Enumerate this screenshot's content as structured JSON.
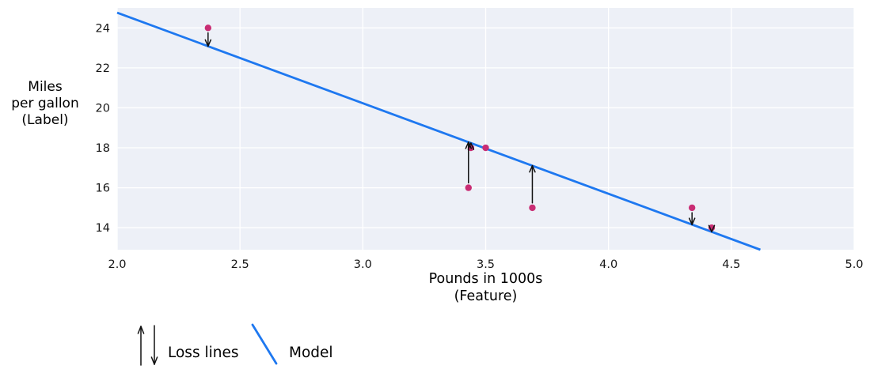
{
  "chart_data": {
    "type": "scatter",
    "title": "",
    "xlabel": [
      "Pounds in 1000s",
      "(Feature)"
    ],
    "ylabel": [
      "Miles",
      "per gallon",
      "(Label)"
    ],
    "xlim": [
      2.0,
      5.0
    ],
    "ylim": [
      12.9,
      25.0
    ],
    "grid": true,
    "legend_position": "bottom",
    "x_ticks": [
      {
        "value": 2.0,
        "label": "2.0"
      },
      {
        "value": 2.5,
        "label": "2.5"
      },
      {
        "value": 3.0,
        "label": "3.0"
      },
      {
        "value": 3.5,
        "label": "3.5"
      },
      {
        "value": 4.0,
        "label": "4.0"
      },
      {
        "value": 4.5,
        "label": "4.5"
      },
      {
        "value": 5.0,
        "label": "5.0"
      }
    ],
    "y_ticks": [
      {
        "value": 14,
        "label": "14"
      },
      {
        "value": 16,
        "label": "16"
      },
      {
        "value": 18,
        "label": "18"
      },
      {
        "value": 20,
        "label": "20"
      },
      {
        "value": 22,
        "label": "22"
      },
      {
        "value": 24,
        "label": "24"
      }
    ],
    "points": [
      {
        "x": 2.37,
        "y": 24,
        "loss_arrow": "down"
      },
      {
        "x": 3.43,
        "y": 16,
        "loss_arrow": "up"
      },
      {
        "x": 3.44,
        "y": 18,
        "loss_arrow": "up"
      },
      {
        "x": 3.5,
        "y": 18,
        "loss_arrow": "none"
      },
      {
        "x": 3.69,
        "y": 15,
        "loss_arrow": "up"
      },
      {
        "x": 4.34,
        "y": 15,
        "loss_arrow": "down"
      },
      {
        "x": 4.42,
        "y": 14,
        "loss_arrow": "down"
      }
    ],
    "model": {
      "slope": -4.53,
      "intercept": 33.82
    },
    "colors": {
      "point": "#c92d74",
      "model_line": "#1e78f0",
      "loss_arrow": "#111111",
      "plot_bg": "#edf0f7",
      "grid": "#ffffff",
      "tick_text": "#161616"
    }
  },
  "legend": {
    "loss_label": "Loss lines",
    "model_label": "Model"
  }
}
